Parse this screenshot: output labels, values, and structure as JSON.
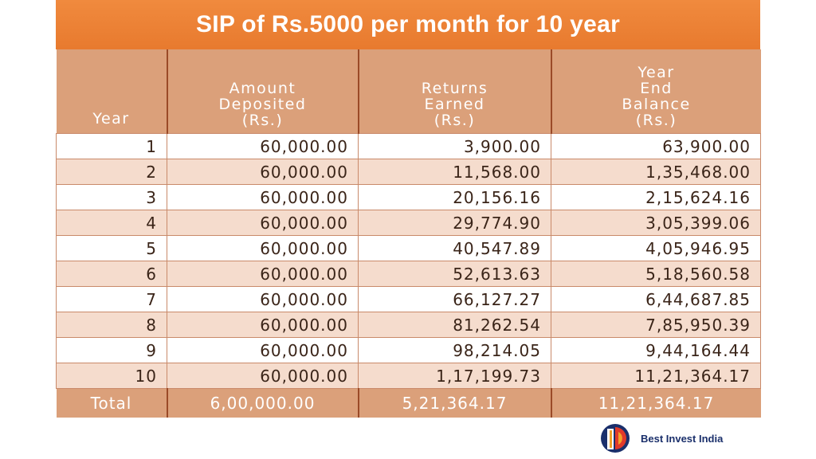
{
  "title": "SIP of Rs.5000 per month for 10 year",
  "headers": {
    "year": "Year",
    "deposited": [
      "Amount",
      "Deposited",
      "(Rs.)"
    ],
    "returns": [
      "Returns",
      "Earned",
      "(Rs.)"
    ],
    "balance": [
      "Year",
      "End",
      "Balance",
      "(Rs.)"
    ]
  },
  "rows": [
    {
      "year": "1",
      "deposited": "60,000.00",
      "returns": "3,900.00",
      "balance": "63,900.00"
    },
    {
      "year": "2",
      "deposited": "60,000.00",
      "returns": "11,568.00",
      "balance": "1,35,468.00"
    },
    {
      "year": "3",
      "deposited": "60,000.00",
      "returns": "20,156.16",
      "balance": "2,15,624.16"
    },
    {
      "year": "4",
      "deposited": "60,000.00",
      "returns": "29,774.90",
      "balance": "3,05,399.06"
    },
    {
      "year": "5",
      "deposited": "60,000.00",
      "returns": "40,547.89",
      "balance": "4,05,946.95"
    },
    {
      "year": "6",
      "deposited": "60,000.00",
      "returns": "52,613.63",
      "balance": "5,18,560.58"
    },
    {
      "year": "7",
      "deposited": "60,000.00",
      "returns": "66,127.27",
      "balance": "6,44,687.85"
    },
    {
      "year": "8",
      "deposited": "60,000.00",
      "returns": "81,262.54",
      "balance": "7,85,950.39"
    },
    {
      "year": "9",
      "deposited": "60,000.00",
      "returns": "98,214.05",
      "balance": "9,44,164.44"
    },
    {
      "year": "10",
      "deposited": "60,000.00",
      "returns": "1,17,199.73",
      "balance": "11,21,364.17"
    }
  ],
  "total": {
    "label": "Total",
    "deposited": "6,00,000.00",
    "returns": "5,21,364.17",
    "balance": "11,21,364.17"
  },
  "logo": {
    "text": "Best Invest India",
    "icon": "best-invest-india-logo",
    "colors": [
      "#1a2f6b",
      "#e03a2a",
      "#f2a22a"
    ]
  },
  "colors": {
    "title_bg": "#e87a2e",
    "header_bg": "#dba07a",
    "row_alt": "#f5dccd"
  }
}
